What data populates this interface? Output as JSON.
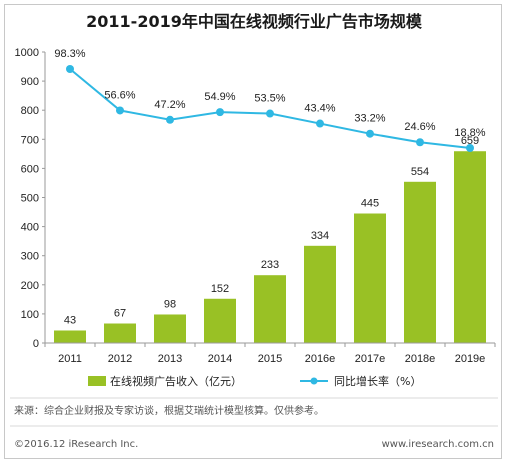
{
  "chart_data": {
    "type": "bar",
    "title": "2011-2019年中国在线视频行业广告市场规模",
    "categories": [
      "2011",
      "2012",
      "2013",
      "2014",
      "2015",
      "2016e",
      "2017e",
      "2018e",
      "2019e"
    ],
    "series": [
      {
        "name": "在线视频广告收入（亿元）",
        "type": "bar",
        "color": "#99c125",
        "values": [
          43,
          67,
          98,
          152,
          233,
          334,
          445,
          554,
          659
        ],
        "labels": [
          "43",
          "67",
          "98",
          "152",
          "233",
          "334",
          "445",
          "554",
          "659"
        ]
      },
      {
        "name": "同比增长率（%）",
        "type": "line",
        "color": "#2fb8e3",
        "values": [
          98.3,
          56.6,
          47.2,
          54.9,
          53.5,
          43.4,
          33.2,
          24.6,
          18.8
        ],
        "labels": [
          "98.3%",
          "56.6%",
          "47.2%",
          "54.9%",
          "53.5%",
          "43.4%",
          "33.2%",
          "24.6%",
          "18.8%"
        ]
      }
    ],
    "y_ticks": [
      "0",
      "100",
      "200",
      "300",
      "400",
      "500",
      "600",
      "700",
      "800",
      "900",
      "1000"
    ],
    "ylim": [
      0,
      1000
    ],
    "legend_position": "bottom",
    "grid": false
  },
  "footer": {
    "source": "来源：综合企业财报及专家访谈，根据艾瑞统计模型核算。仅供参考。",
    "copyright": "©2016.12 iResearch Inc.",
    "website": "www.iresearch.com.cn"
  }
}
